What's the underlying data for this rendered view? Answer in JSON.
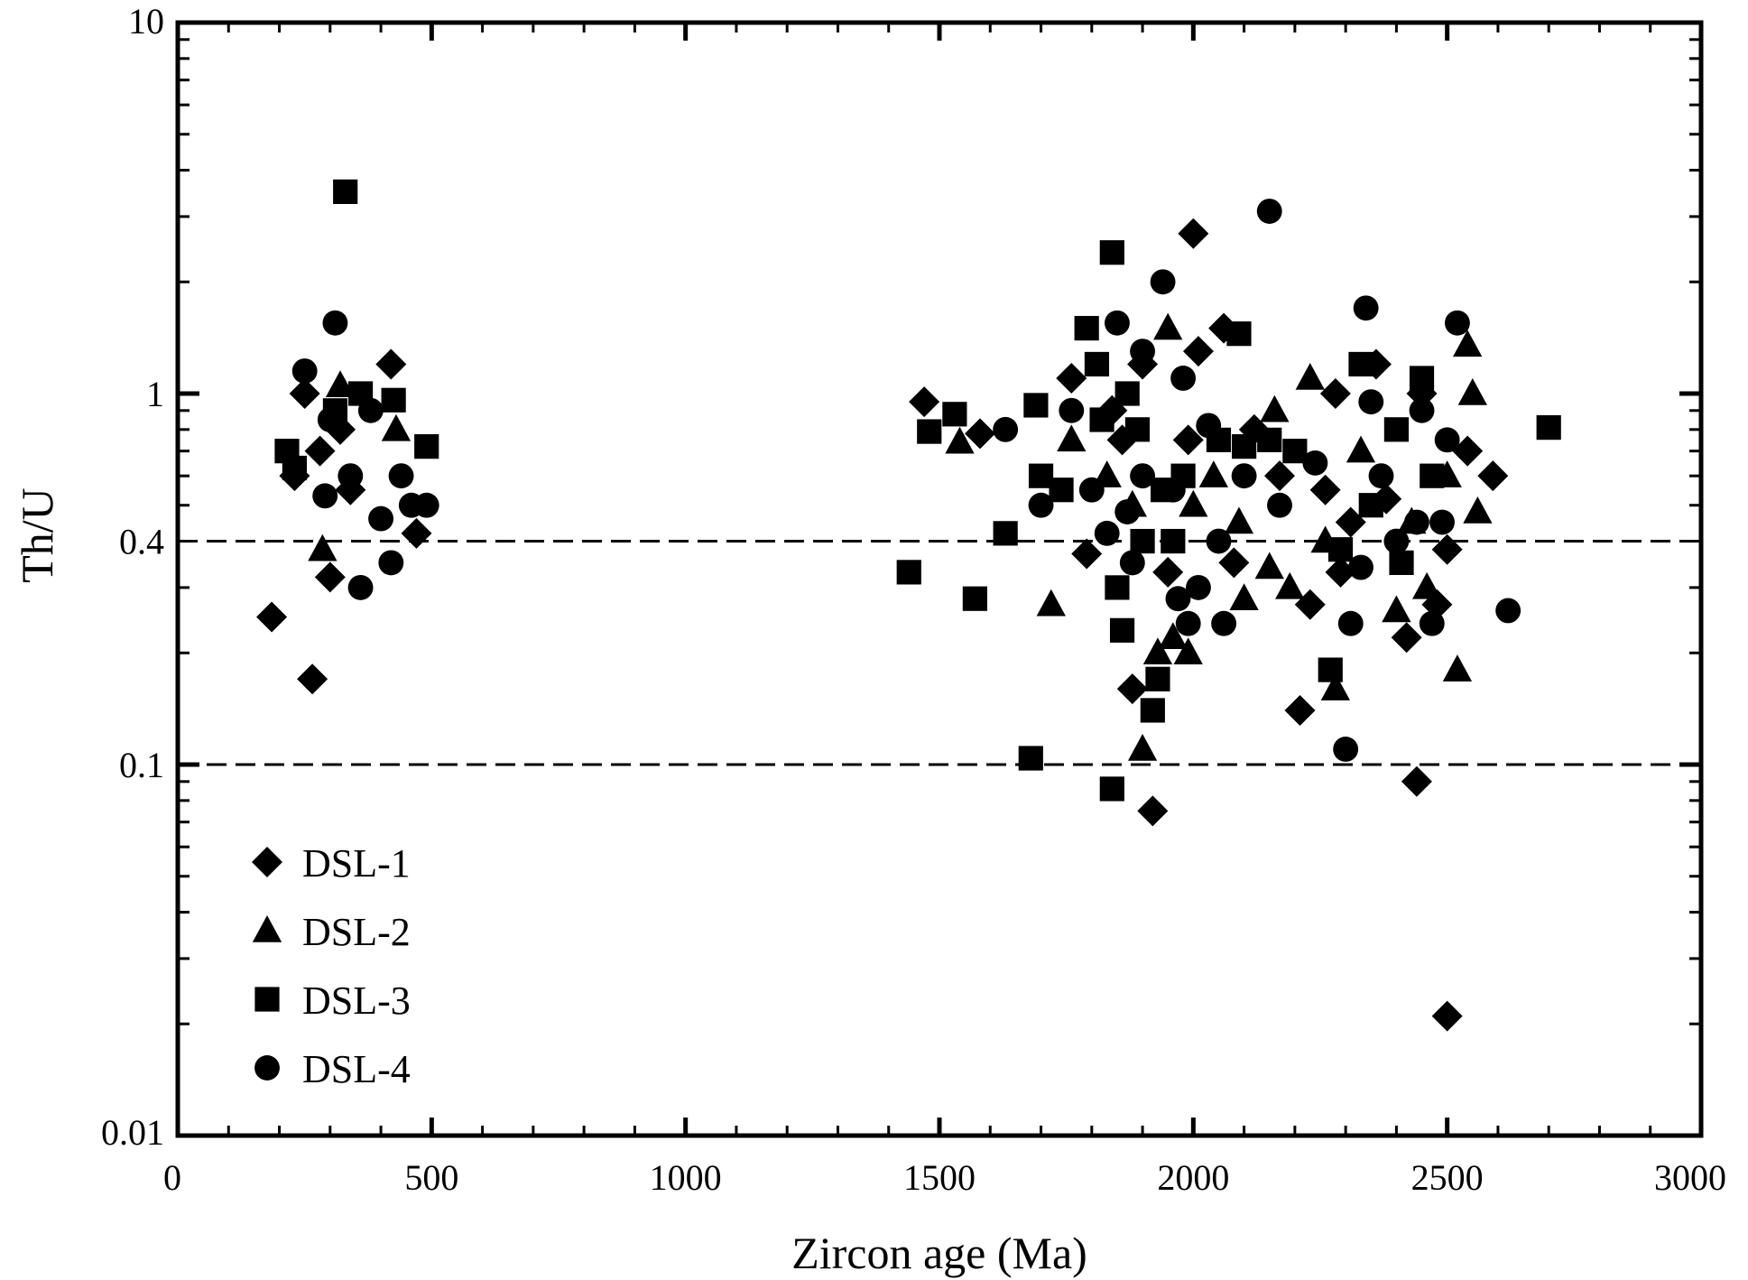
{
  "chart_data": {
    "type": "scatter",
    "xlabel": "Zircon age (Ma)",
    "ylabel": "Th/U",
    "xlim": [
      0,
      3000
    ],
    "ylim": [
      0.01,
      10
    ],
    "y_scale": "log",
    "x_ticks": [
      0,
      500,
      1000,
      1500,
      2000,
      2500,
      3000
    ],
    "x_tick_labels": [
      "0",
      "500",
      "1000",
      "1500",
      "2000",
      "2500",
      "3000"
    ],
    "y_ticks": [
      0.01,
      0.1,
      0.4,
      1,
      10
    ],
    "y_tick_labels": [
      "0.01",
      "0.1",
      "0.4",
      "1",
      "10"
    ],
    "reference_lines": [
      0.4,
      0.1
    ],
    "grid": false,
    "legend_position": "bottom-left",
    "marker_color": "#000000",
    "series": [
      {
        "name": "DSL-1",
        "marker": "diamond",
        "points": [
          [
            185,
            0.25
          ],
          [
            265,
            0.17
          ],
          [
            250,
            1.0
          ],
          [
            230,
            0.6
          ],
          [
            280,
            0.7
          ],
          [
            300,
            0.32
          ],
          [
            340,
            0.55
          ],
          [
            420,
            1.2
          ],
          [
            470,
            0.42
          ],
          [
            320,
            0.8
          ],
          [
            1470,
            0.95
          ],
          [
            1580,
            0.78
          ],
          [
            1760,
            1.1
          ],
          [
            1790,
            0.37
          ],
          [
            1860,
            0.75
          ],
          [
            1880,
            0.16
          ],
          [
            1920,
            0.075
          ],
          [
            1950,
            0.33
          ],
          [
            1990,
            0.75
          ],
          [
            2000,
            2.7
          ],
          [
            2010,
            1.3
          ],
          [
            2060,
            1.5
          ],
          [
            2080,
            0.35
          ],
          [
            2170,
            0.6
          ],
          [
            2210,
            0.14
          ],
          [
            2230,
            0.27
          ],
          [
            2260,
            0.55
          ],
          [
            2280,
            1.0
          ],
          [
            2290,
            0.33
          ],
          [
            2310,
            0.45
          ],
          [
            2360,
            1.2
          ],
          [
            2380,
            0.52
          ],
          [
            2420,
            0.22
          ],
          [
            2440,
            0.09
          ],
          [
            2480,
            0.27
          ],
          [
            2500,
            0.38
          ],
          [
            2540,
            0.7
          ],
          [
            2590,
            0.6
          ],
          [
            2500,
            0.021
          ],
          [
            2450,
            1.0
          ],
          [
            1840,
            0.9
          ],
          [
            1900,
            1.2
          ],
          [
            2120,
            0.8
          ]
        ]
      },
      {
        "name": "DSL-2",
        "marker": "triangle",
        "points": [
          [
            285,
            0.38
          ],
          [
            430,
            0.8
          ],
          [
            320,
            1.05
          ],
          [
            1540,
            0.74
          ],
          [
            1720,
            0.27
          ],
          [
            1760,
            0.75
          ],
          [
            1830,
            0.6
          ],
          [
            1900,
            0.11
          ],
          [
            1930,
            0.2
          ],
          [
            1950,
            1.5
          ],
          [
            1960,
            0.22
          ],
          [
            1990,
            0.2
          ],
          [
            2040,
            0.6
          ],
          [
            2090,
            0.45
          ],
          [
            2100,
            0.28
          ],
          [
            2150,
            0.34
          ],
          [
            2160,
            0.9
          ],
          [
            2190,
            0.3
          ],
          [
            2230,
            1.1
          ],
          [
            2260,
            0.4
          ],
          [
            2280,
            0.16
          ],
          [
            2330,
            0.7
          ],
          [
            2400,
            0.26
          ],
          [
            2430,
            0.45
          ],
          [
            2460,
            0.3
          ],
          [
            2500,
            0.6
          ],
          [
            2520,
            0.18
          ],
          [
            2540,
            1.35
          ],
          [
            2550,
            1.0
          ],
          [
            2560,
            0.48
          ],
          [
            1880,
            0.5
          ],
          [
            2000,
            0.5
          ]
        ]
      },
      {
        "name": "DSL-3",
        "marker": "square",
        "points": [
          [
            330,
            3.5
          ],
          [
            215,
            0.7
          ],
          [
            230,
            0.63
          ],
          [
            310,
            0.9
          ],
          [
            360,
            1.0
          ],
          [
            425,
            0.96
          ],
          [
            490,
            0.72
          ],
          [
            1440,
            0.33
          ],
          [
            1480,
            0.79
          ],
          [
            1530,
            0.88
          ],
          [
            1570,
            0.28
          ],
          [
            1630,
            0.42
          ],
          [
            1680,
            0.104
          ],
          [
            1690,
            0.93
          ],
          [
            1700,
            0.6
          ],
          [
            1740,
            0.55
          ],
          [
            1790,
            1.5
          ],
          [
            1810,
            1.2
          ],
          [
            1840,
            2.4
          ],
          [
            1850,
            0.3
          ],
          [
            1860,
            0.23
          ],
          [
            1870,
            1.0
          ],
          [
            1890,
            0.8
          ],
          [
            1920,
            0.14
          ],
          [
            1930,
            0.17
          ],
          [
            1940,
            0.55
          ],
          [
            1960,
            0.4
          ],
          [
            1980,
            0.6
          ],
          [
            2050,
            0.75
          ],
          [
            2090,
            1.45
          ],
          [
            2100,
            0.72
          ],
          [
            2150,
            0.75
          ],
          [
            2200,
            0.7
          ],
          [
            2270,
            0.18
          ],
          [
            2290,
            0.38
          ],
          [
            2330,
            1.2
          ],
          [
            2350,
            0.5
          ],
          [
            2400,
            0.8
          ],
          [
            2410,
            0.35
          ],
          [
            2450,
            1.1
          ],
          [
            2470,
            0.6
          ],
          [
            2700,
            0.81
          ],
          [
            1840,
            0.086
          ],
          [
            1900,
            0.4
          ],
          [
            1820,
            0.85
          ]
        ]
      },
      {
        "name": "DSL-4",
        "marker": "circle",
        "points": [
          [
            310,
            1.55
          ],
          [
            250,
            1.15
          ],
          [
            290,
            0.53
          ],
          [
            300,
            0.85
          ],
          [
            340,
            0.6
          ],
          [
            360,
            0.3
          ],
          [
            380,
            0.9
          ],
          [
            400,
            0.46
          ],
          [
            420,
            0.35
          ],
          [
            440,
            0.6
          ],
          [
            460,
            0.5
          ],
          [
            490,
            0.5
          ],
          [
            1630,
            0.8
          ],
          [
            1700,
            0.5
          ],
          [
            1760,
            0.9
          ],
          [
            1800,
            0.55
          ],
          [
            1830,
            0.42
          ],
          [
            1850,
            1.55
          ],
          [
            1870,
            0.48
          ],
          [
            1900,
            1.3
          ],
          [
            1940,
            2.0
          ],
          [
            1960,
            0.55
          ],
          [
            1970,
            0.28
          ],
          [
            1990,
            0.24
          ],
          [
            2030,
            0.82
          ],
          [
            2060,
            0.24
          ],
          [
            2100,
            0.6
          ],
          [
            2150,
            3.1
          ],
          [
            2170,
            0.5
          ],
          [
            2240,
            0.65
          ],
          [
            2300,
            0.11
          ],
          [
            2310,
            0.24
          ],
          [
            2330,
            0.34
          ],
          [
            2340,
            1.7
          ],
          [
            2350,
            0.95
          ],
          [
            2400,
            0.4
          ],
          [
            2440,
            0.45
          ],
          [
            2470,
            0.24
          ],
          [
            2500,
            0.75
          ],
          [
            2520,
            1.55
          ],
          [
            2620,
            0.26
          ],
          [
            1900,
            0.6
          ],
          [
            2050,
            0.4
          ],
          [
            1980,
            1.1
          ],
          [
            2450,
            0.9
          ],
          [
            2370,
            0.6
          ],
          [
            1880,
            0.35
          ],
          [
            2010,
            0.3
          ],
          [
            2490,
            0.45
          ]
        ]
      }
    ]
  }
}
